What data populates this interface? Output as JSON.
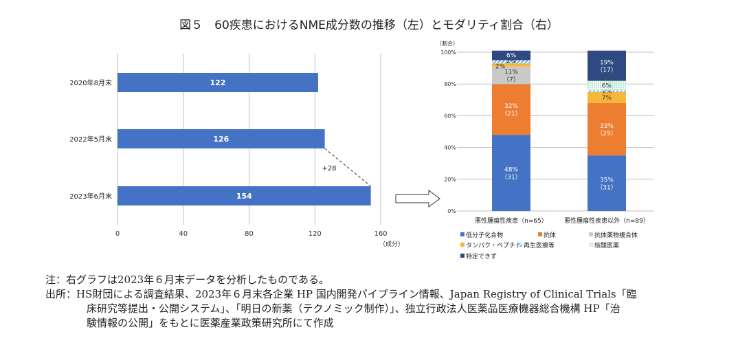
{
  "title": "図５　60疾患におけるNME成分数の推移（左）とモダリティ割合（右）",
  "chart_data": [
    {
      "type": "bar",
      "orientation": "horizontal",
      "categories": [
        "2020年8月末",
        "2022年5月末",
        "2023年6月末"
      ],
      "values": [
        122,
        126,
        154
      ],
      "xlim": [
        0,
        160
      ],
      "xticks": [
        0,
        40,
        80,
        120,
        160
      ],
      "xlabel": "（成分）",
      "annotation": "+28",
      "color": "#4472C4",
      "grid": "vertical"
    },
    {
      "type": "bar",
      "stacked": true,
      "ylabel": "（割合）",
      "ylim": [
        0,
        100
      ],
      "yticks": [
        "0%",
        "20%",
        "40%",
        "60%",
        "80%",
        "100%"
      ],
      "categories": [
        "悪性腫瘍性疾患（n=65）",
        "悪性腫瘍性疾患以外（n=89）"
      ],
      "legend_position": "bottom",
      "series": [
        {
          "name": "低分子化合物",
          "color": "#4472C4",
          "values": [
            48,
            35
          ],
          "labels": [
            "48%\n（31）",
            "35%\n（31）"
          ]
        },
        {
          "name": "抗体",
          "color": "#ED7D31",
          "values": [
            32,
            33
          ],
          "labels": [
            "32%\n（21）",
            "33%\n（29）"
          ]
        },
        {
          "name": "抗体薬物複合体",
          "color": "#C9C9C9",
          "values": [
            11,
            0
          ],
          "labels": [
            "11%\n（7）",
            ""
          ]
        },
        {
          "name": "タンパク・ペプチド",
          "color": "#F4B183",
          "fill": "#F6B73C",
          "values": [
            2,
            7
          ],
          "labels": [
            "2%",
            "7%"
          ]
        },
        {
          "name": "再生医療等",
          "color": "#5BB8E8",
          "values": [
            2,
            1
          ],
          "labels": [
            "2%",
            "1%"
          ]
        },
        {
          "name": "核酸医薬",
          "color": "#9FE0C0",
          "values": [
            0,
            6
          ],
          "labels": [
            "",
            "6%"
          ]
        },
        {
          "name": "特定できず",
          "color": "#2F4A80",
          "values": [
            6,
            19
          ],
          "labels": [
            "6%",
            "19%\n（17）"
          ]
        }
      ]
    }
  ],
  "notes": {
    "note": "注：右グラフは2023年６月末データを分析したものである。",
    "source_1": "出所：HS財団による調査結果、2023年６月末各企業 HP 国内開発パイプライン情報、Japan Registry of Clinical Trials「臨",
    "source_2": "床研究等提出・公開システム」、「明日の新薬（テクノミック制作）」、独立行政法人医薬品医療機器総合機構 HP「治",
    "source_3": "験情報の公開」をもとに医薬産業政策研究所にて作成"
  }
}
